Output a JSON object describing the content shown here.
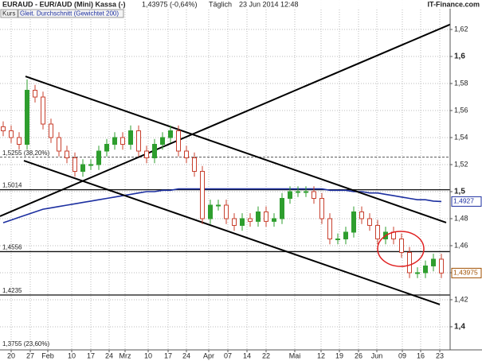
{
  "chart_data": {
    "type": "candlestick",
    "title": "EURAUD - EUR/AUD (Mini) Kassa (-)",
    "quote": "1,43975 (-0,64%)",
    "interval": "Täglich",
    "timestamp": "23 Jun 2014 12:48",
    "source": "IT-Finance.com",
    "series": {
      "name": "Kurs",
      "up_color": "#2e9e2e",
      "down_color": "#c8402e",
      "open": [
        1.548,
        1.545,
        1.54,
        1.535,
        1.575,
        1.57,
        1.55,
        1.54,
        1.53,
        1.525,
        1.515,
        1.52,
        1.52,
        1.53,
        1.535,
        1.54,
        1.535,
        1.545,
        1.53,
        1.525,
        1.535,
        1.54,
        1.545,
        1.53,
        1.525,
        1.515,
        1.48,
        1.49,
        1.49,
        1.48,
        1.475,
        1.48,
        1.478,
        1.485,
        1.478,
        1.48,
        1.495,
        1.5,
        1.5,
        1.5,
        1.495,
        1.48,
        1.465,
        1.465,
        1.47,
        1.485,
        1.48,
        1.475,
        1.465,
        1.47,
        1.465,
        1.455,
        1.44,
        1.44,
        1.445,
        1.45
      ],
      "high": [
        1.552,
        1.549,
        1.544,
        1.583,
        1.579,
        1.574,
        1.554,
        1.544,
        1.534,
        1.529,
        1.524,
        1.524,
        1.534,
        1.539,
        1.544,
        1.544,
        1.549,
        1.549,
        1.534,
        1.539,
        1.544,
        1.549,
        1.549,
        1.534,
        1.529,
        1.519,
        1.494,
        1.494,
        1.494,
        1.484,
        1.484,
        1.484,
        1.489,
        1.489,
        1.484,
        1.499,
        1.504,
        1.504,
        1.504,
        1.504,
        1.499,
        1.484,
        1.469,
        1.474,
        1.489,
        1.489,
        1.484,
        1.479,
        1.474,
        1.474,
        1.469,
        1.459,
        1.444,
        1.449,
        1.454,
        1.454
      ],
      "low": [
        1.541,
        1.536,
        1.531,
        1.531,
        1.566,
        1.546,
        1.536,
        1.526,
        1.521,
        1.511,
        1.511,
        1.516,
        1.516,
        1.526,
        1.531,
        1.531,
        1.531,
        1.526,
        1.521,
        1.521,
        1.531,
        1.536,
        1.526,
        1.521,
        1.511,
        1.476,
        1.476,
        1.486,
        1.476,
        1.471,
        1.471,
        1.474,
        1.474,
        1.474,
        1.474,
        1.476,
        1.491,
        1.496,
        1.496,
        1.491,
        1.476,
        1.461,
        1.461,
        1.461,
        1.466,
        1.476,
        1.471,
        1.461,
        1.461,
        1.461,
        1.451,
        1.436,
        1.436,
        1.436,
        1.441,
        1.436
      ],
      "close": [
        1.545,
        1.54,
        1.535,
        1.575,
        1.57,
        1.55,
        1.54,
        1.53,
        1.525,
        1.515,
        1.52,
        1.52,
        1.53,
        1.535,
        1.54,
        1.535,
        1.545,
        1.53,
        1.525,
        1.535,
        1.54,
        1.545,
        1.53,
        1.525,
        1.515,
        1.48,
        1.49,
        1.49,
        1.48,
        1.475,
        1.48,
        1.478,
        1.485,
        1.478,
        1.48,
        1.495,
        1.5,
        1.5,
        1.5,
        1.495,
        1.48,
        1.465,
        1.465,
        1.47,
        1.485,
        1.48,
        1.475,
        1.465,
        1.47,
        1.465,
        1.455,
        1.44,
        1.44,
        1.445,
        1.45,
        1.43975
      ],
      "last_label": "1,43975"
    },
    "moving_average": {
      "name": "Gleit. Durchschnitt (Gewichtet 200)",
      "color": "#1c2fa0",
      "values": [
        1.477,
        1.479,
        1.481,
        1.483,
        1.485,
        1.487,
        1.488,
        1.489,
        1.49,
        1.491,
        1.492,
        1.493,
        1.494,
        1.495,
        1.496,
        1.497,
        1.498,
        1.499,
        1.5,
        1.5,
        1.501,
        1.501,
        1.502,
        1.502,
        1.502,
        1.502,
        1.502,
        1.502,
        1.502,
        1.502,
        1.502,
        1.502,
        1.502,
        1.502,
        1.502,
        1.502,
        1.502,
        1.502,
        1.502,
        1.502,
        1.502,
        1.501,
        1.501,
        1.501,
        1.5,
        1.5,
        1.499,
        1.499,
        1.498,
        1.497,
        1.496,
        1.495,
        1.494,
        1.494,
        1.493,
        1.4927
      ],
      "last_label": "1,4927"
    },
    "levels": [
      {
        "value": 1.5255,
        "label": "1,5255 (38,20%)",
        "style": "dashed"
      },
      {
        "value": 1.5014,
        "label": "1,5014",
        "style": "solid"
      },
      {
        "value": 1.4556,
        "label": "1,4556",
        "style": "solid"
      },
      {
        "value": 1.4235,
        "label": "1,4235",
        "style": "solid"
      },
      {
        "value": 1.3755,
        "label": "1,3755 (23,60%)",
        "style": "dashed"
      }
    ],
    "trendlines": [
      {
        "x": [
          -0.4,
          58.6
        ],
        "y": [
          1.4818,
          1.63
        ]
      },
      {
        "x": [
          2.8,
          55.6
        ],
        "y": [
          1.5853,
          1.4771
        ]
      },
      {
        "x": [
          2.6,
          54.8
        ],
        "y": [
          1.5229,
          1.4165
        ]
      }
    ],
    "xlim": [
      -0.4,
      56.1
    ],
    "ylim": [
      1.3829,
      1.6418
    ],
    "yticks": [
      {
        "value": 1.4,
        "label": "1,4"
      },
      {
        "value": 1.42,
        "label": "1,42"
      },
      {
        "value": 1.44,
        "label": "1,44"
      },
      {
        "value": 1.46,
        "label": "1,46"
      },
      {
        "value": 1.48,
        "label": "1,48"
      },
      {
        "value": 1.5,
        "label": "1,5"
      },
      {
        "value": 1.52,
        "label": "1,52"
      },
      {
        "value": 1.54,
        "label": "1,54"
      },
      {
        "value": 1.56,
        "label": "1,56"
      },
      {
        "value": 1.58,
        "label": "1,58"
      },
      {
        "value": 1.6,
        "label": "1,6"
      },
      {
        "value": 1.62,
        "label": "1,62"
      }
    ],
    "xticks": [
      {
        "value": 1,
        "label": "20"
      },
      {
        "value": 3.4,
        "label": "27"
      },
      {
        "value": 5.6,
        "label": "Feb"
      },
      {
        "value": 8.6,
        "label": "10"
      },
      {
        "value": 11,
        "label": "17"
      },
      {
        "value": 13.3,
        "label": "24"
      },
      {
        "value": 15.3,
        "label": "Mrz"
      },
      {
        "value": 18.2,
        "label": "10"
      },
      {
        "value": 20.7,
        "label": "17"
      },
      {
        "value": 23,
        "label": "24"
      },
      {
        "value": 25.8,
        "label": "Apr"
      },
      {
        "value": 28.2,
        "label": "07"
      },
      {
        "value": 30.6,
        "label": "14"
      },
      {
        "value": 33,
        "label": "22"
      },
      {
        "value": 36.6,
        "label": "Mai"
      },
      {
        "value": 39.9,
        "label": "12"
      },
      {
        "value": 42.2,
        "label": "19"
      },
      {
        "value": 44.6,
        "label": "26"
      },
      {
        "value": 46.9,
        "label": "Jun"
      },
      {
        "value": 50.1,
        "label": "09"
      },
      {
        "value": 52.4,
        "label": "16"
      },
      {
        "value": 54.8,
        "label": "23"
      }
    ],
    "grid": true
  }
}
